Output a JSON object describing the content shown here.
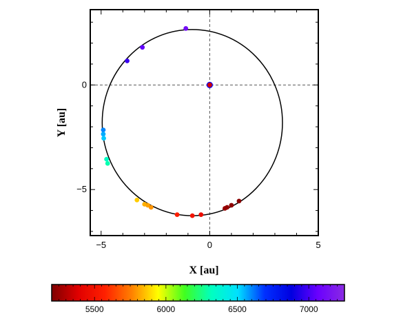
{
  "chart_data": [
    {
      "type": "scatter",
      "xlabel": "X [au]",
      "ylabel": "Y [au]",
      "xlim": [
        -5.5,
        5
      ],
      "ylim": [
        -7.2,
        3.6
      ],
      "xticks": [
        -5,
        0,
        5
      ],
      "xtick_labels": [
        "−5",
        "0",
        "5"
      ],
      "yticks": [
        -5,
        0
      ],
      "ytick_labels": [
        "−5",
        "0"
      ],
      "grid": false,
      "reference_lines": {
        "x": 0,
        "y": 0,
        "style": "dashed"
      },
      "orbit": {
        "center_x": -0.8,
        "center_y": -1.8,
        "semi_axis_x": 4.15,
        "semi_axis_y": 4.45
      },
      "central_point": {
        "x": 0,
        "y": 0
      },
      "points": [
        {
          "x": -1.1,
          "y": 2.7,
          "value": 7120
        },
        {
          "x": -3.1,
          "y": 1.8,
          "value": 7050
        },
        {
          "x": -3.8,
          "y": 1.15,
          "value": 6980
        },
        {
          "x": -4.9,
          "y": -2.15,
          "value": 6600
        },
        {
          "x": -4.9,
          "y": -2.35,
          "value": 6560
        },
        {
          "x": -4.88,
          "y": -2.55,
          "value": 6530
        },
        {
          "x": -4.75,
          "y": -3.55,
          "value": 6330
        },
        {
          "x": -4.7,
          "y": -3.75,
          "value": 6300
        },
        {
          "x": -3.35,
          "y": -5.5,
          "value": 5870
        },
        {
          "x": -3.0,
          "y": -5.7,
          "value": 5830
        },
        {
          "x": -2.85,
          "y": -5.75,
          "value": 5810
        },
        {
          "x": -2.7,
          "y": -5.85,
          "value": 5790
        },
        {
          "x": -1.5,
          "y": -6.2,
          "value": 5560
        },
        {
          "x": -0.8,
          "y": -6.25,
          "value": 5500
        },
        {
          "x": -0.4,
          "y": -6.2,
          "value": 5460
        },
        {
          "x": 0.7,
          "y": -5.9,
          "value": 5250
        },
        {
          "x": 0.8,
          "y": -5.85,
          "value": 5240
        },
        {
          "x": 1.0,
          "y": -5.75,
          "value": 5230
        },
        {
          "x": 1.35,
          "y": -5.55,
          "value": 5220
        }
      ]
    },
    {
      "type": "colorbar",
      "range": [
        5200,
        7250
      ],
      "ticks": [
        5500,
        6000,
        6500,
        7000
      ],
      "tick_labels": [
        "5500",
        "6000",
        "6500",
        "7000"
      ],
      "minor_tick_step": 50,
      "colormap": "rainbow",
      "colormap_stops": [
        "#7f0000",
        "#e00000",
        "#ff2000",
        "#ff8000",
        "#ffff00",
        "#40ff20",
        "#00ffc0",
        "#00e0ff",
        "#0030ff",
        "#0000e0",
        "#6a00ff",
        "#8a2be2"
      ]
    }
  ]
}
